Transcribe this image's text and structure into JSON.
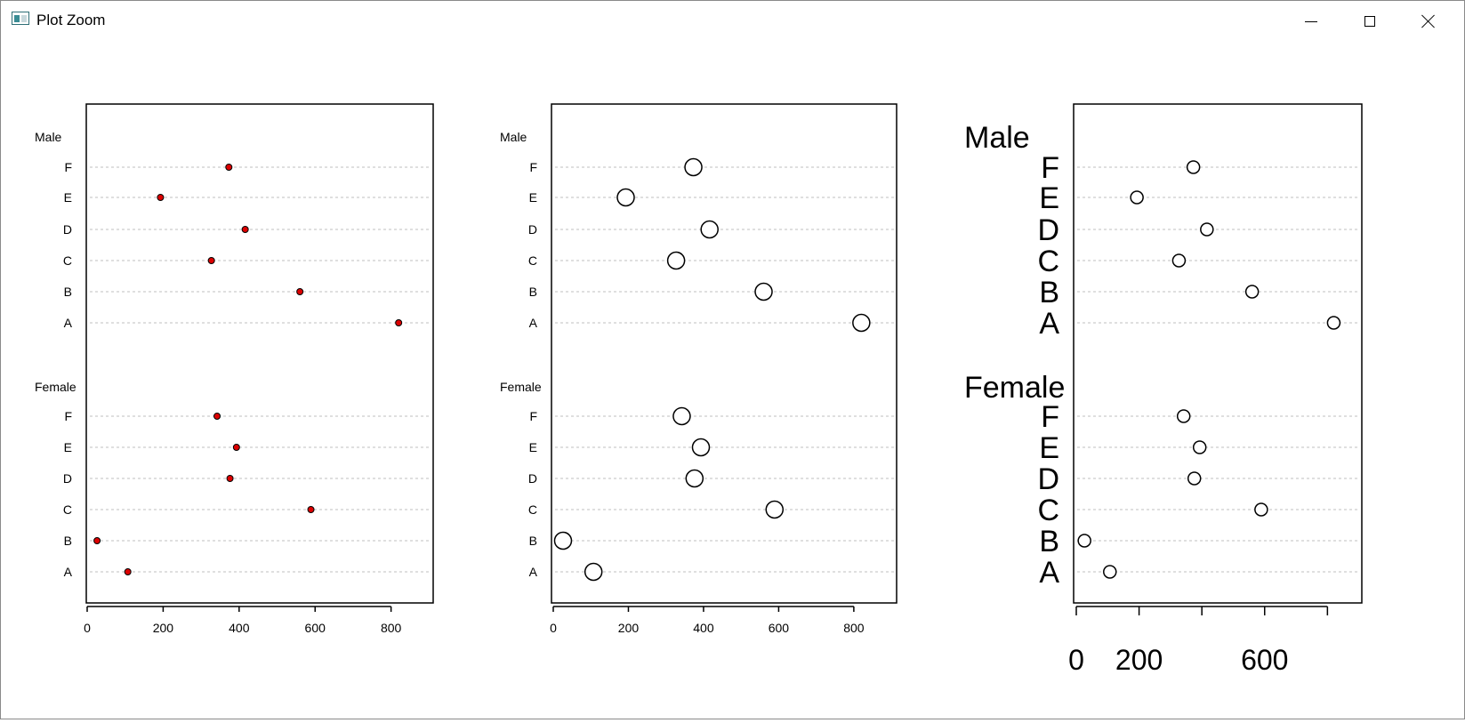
{
  "window": {
    "title": "Plot Zoom",
    "icon": "app-window-icon",
    "controls": [
      "minimize-icon",
      "maximize-icon",
      "close-icon"
    ]
  },
  "chart_data": [
    {
      "type": "scatter",
      "style": "dotchart",
      "marker": {
        "shape": "circle",
        "fill": "#dd0000",
        "stroke": "#000000",
        "size": "small"
      },
      "groups": [
        {
          "label": "Male",
          "categories": [
            "F",
            "E",
            "D",
            "C",
            "B",
            "A"
          ],
          "values": [
            373,
            193,
            416,
            327,
            560,
            820
          ]
        },
        {
          "label": "Female",
          "categories": [
            "F",
            "E",
            "D",
            "C",
            "B",
            "A"
          ],
          "values": [
            342,
            393,
            376,
            589,
            26,
            107
          ]
        }
      ],
      "xticks": [
        "0",
        "200",
        "400",
        "600",
        "800"
      ],
      "xlim": [
        0,
        850
      ],
      "grid": "dashed horizontal lines",
      "label_size": "small"
    },
    {
      "type": "scatter",
      "style": "dotchart",
      "marker": {
        "shape": "circle",
        "fill": "#ffffff",
        "stroke": "#000000",
        "size": "large"
      },
      "groups": [
        {
          "label": "Male",
          "categories": [
            "F",
            "E",
            "D",
            "C",
            "B",
            "A"
          ],
          "values": [
            373,
            193,
            416,
            327,
            560,
            820
          ]
        },
        {
          "label": "Female",
          "categories": [
            "F",
            "E",
            "D",
            "C",
            "B",
            "A"
          ],
          "values": [
            342,
            393,
            376,
            589,
            26,
            107
          ]
        }
      ],
      "xticks": [
        "0",
        "200",
        "400",
        "600",
        "800"
      ],
      "xlim": [
        0,
        850
      ],
      "grid": "dashed horizontal lines",
      "label_size": "small"
    },
    {
      "type": "scatter",
      "style": "dotchart",
      "marker": {
        "shape": "circle",
        "fill": "#ffffff",
        "stroke": "#000000",
        "size": "medium"
      },
      "groups": [
        {
          "label": "Male",
          "categories": [
            "F",
            "E",
            "D",
            "C",
            "B",
            "A"
          ],
          "values": [
            373,
            193,
            416,
            327,
            560,
            820
          ]
        },
        {
          "label": "Female",
          "categories": [
            "F",
            "E",
            "D",
            "C",
            "B",
            "A"
          ],
          "values": [
            342,
            393,
            376,
            589,
            26,
            107
          ]
        }
      ],
      "xticks": [
        "0",
        "200",
        "600"
      ],
      "xtick_marks": [
        0,
        200,
        400,
        600,
        800
      ],
      "xlim": [
        0,
        850
      ],
      "grid": "dashed horizontal lines",
      "label_size": "large"
    }
  ]
}
